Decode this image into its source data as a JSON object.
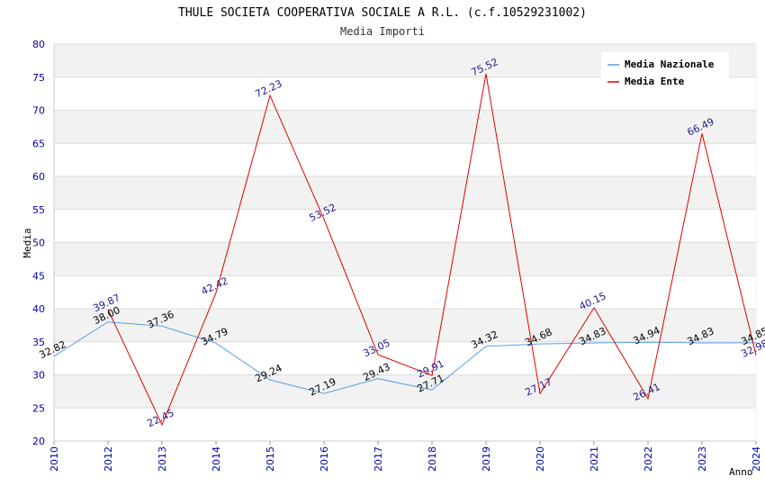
{
  "title": "THULE SOCIETA COOPERATIVA SOCIALE A R.L. (c.f.10529231002)",
  "subtitle": "Media Importi",
  "colors": {
    "nazionale": "#5aa0e0",
    "ente": "#e00000",
    "label_nazionale": "#000000",
    "label_ente": "#1a1a8c",
    "band": "#f2f2f2",
    "grid": "#dcdcdc",
    "tick": "#0000aa"
  },
  "chart_data": {
    "type": "line",
    "title": "THULE SOCIETA COOPERATIVA SOCIALE A R.L. (c.f.10529231002)",
    "subtitle": "Media Importi",
    "xlabel": "Anno",
    "ylabel": "Media",
    "ylim": [
      20,
      80
    ],
    "yticks": [
      "20",
      "25",
      "30",
      "35",
      "40",
      "45",
      "50",
      "55",
      "60",
      "65",
      "70",
      "75",
      "80"
    ],
    "xticks": [
      "2010",
      "2012",
      "2013",
      "2014",
      "2015",
      "2016",
      "2017",
      "2018",
      "2019",
      "2020",
      "2021",
      "2022",
      "2023",
      "2024"
    ],
    "grid": true,
    "legend_position": "top-right",
    "series": [
      {
        "name": "Media Nazionale",
        "values": [
          32.82,
          38.0,
          37.36,
          34.79,
          29.24,
          27.19,
          29.43,
          27.71,
          34.32,
          34.68,
          34.83,
          34.94,
          34.83,
          34.85
        ],
        "labels": [
          "32.82",
          "38.00",
          "37.36",
          "34.79",
          "29.24",
          "27.19",
          "29.43",
          "27.71",
          "34.32",
          "34.68",
          "34.83",
          "34.94",
          "34.83",
          "34.85"
        ]
      },
      {
        "name": "Media Ente",
        "values": [
          null,
          39.87,
          22.45,
          42.42,
          72.23,
          53.52,
          33.05,
          29.91,
          75.52,
          27.17,
          40.15,
          26.41,
          66.49,
          32.98
        ],
        "labels": [
          "",
          "39.87",
          "22.45",
          "42.42",
          "72.23",
          "53.52",
          "33.05",
          "29.91",
          "75.52",
          "27.17",
          "40.15",
          "26.41",
          "66.49",
          "32.98"
        ]
      }
    ]
  }
}
